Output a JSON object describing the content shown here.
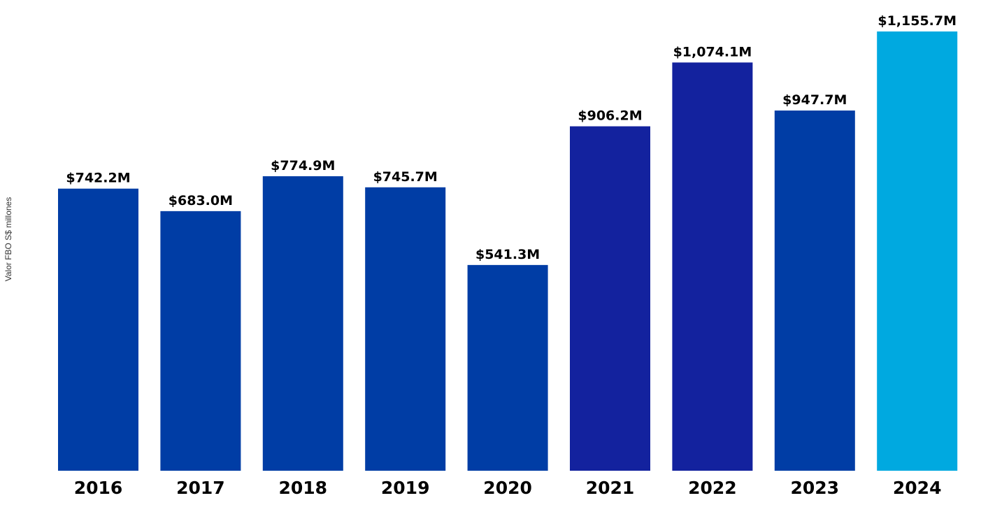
{
  "chart_data": {
    "type": "bar",
    "title": "",
    "xlabel": "",
    "ylabel": "Valor FBO S$ millones",
    "ylim": [
      0,
      1155.7
    ],
    "grid": false,
    "categories": [
      "2016",
      "2017",
      "2018",
      "2019",
      "2020",
      "2021",
      "2022",
      "2023",
      "2024"
    ],
    "values": [
      742.2,
      683.0,
      774.9,
      745.7,
      541.3,
      906.2,
      1074.1,
      947.7,
      1155.7
    ],
    "data_labels": [
      "$742.2M",
      "$683.0M",
      "$774.9M",
      "$745.7M",
      "$541.3M",
      "$906.2M",
      "$1,074.1M",
      "$947.7M",
      "$1,155.7M"
    ],
    "colors": [
      "#003DA5",
      "#003DA5",
      "#003DA5",
      "#003DA5",
      "#003DA5",
      "#13229E",
      "#13229E",
      "#003DA5",
      "#00A9E0"
    ]
  }
}
